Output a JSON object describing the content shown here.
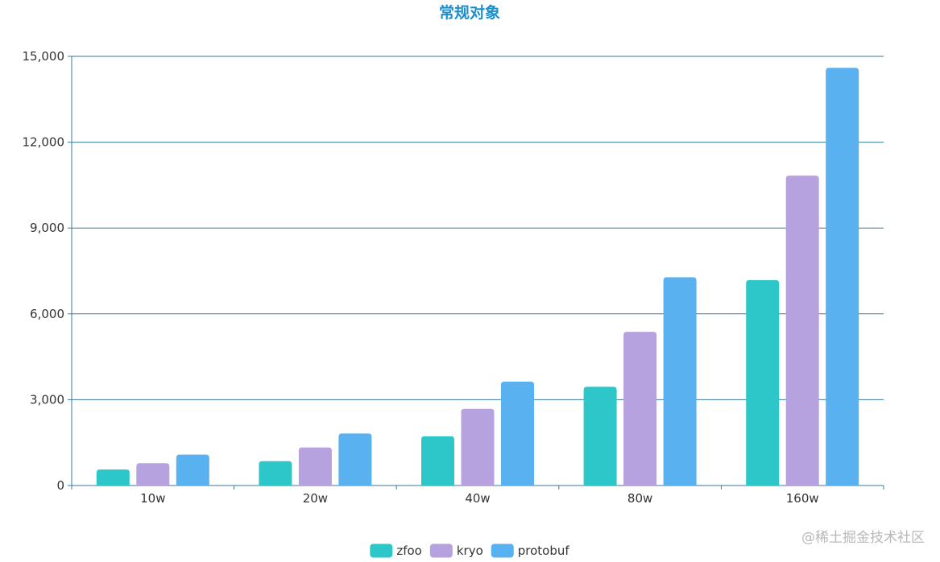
{
  "watermark": "@稀土掘金技术社区",
  "colors": {
    "zfoo": "#2ec7c9",
    "kryo": "#b6a2de",
    "protobuf": "#5ab1ef",
    "axis": "#3a7a9e",
    "title": "#1a8fce"
  },
  "chart_data": {
    "type": "bar",
    "title": "常规对象",
    "categories": [
      "10w",
      "20w",
      "40w",
      "80w",
      "160w"
    ],
    "series": [
      {
        "name": "zfoo",
        "color": "#2ec7c9",
        "values": [
          560,
          850,
          1720,
          3450,
          7180
        ]
      },
      {
        "name": "kryo",
        "color": "#b6a2de",
        "values": [
          780,
          1330,
          2680,
          5370,
          10830
        ]
      },
      {
        "name": "protobuf",
        "color": "#5ab1ef",
        "values": [
          1080,
          1820,
          3630,
          7280,
          14600
        ]
      }
    ],
    "ylim": [
      0,
      15000
    ],
    "yticks": [
      0,
      3000,
      6000,
      9000,
      12000,
      15000
    ],
    "ytick_labels": [
      "0",
      "3,000",
      "6,000",
      "9,000",
      "12,000",
      "15,000"
    ],
    "grid": true,
    "legend_position": "bottom-center"
  }
}
